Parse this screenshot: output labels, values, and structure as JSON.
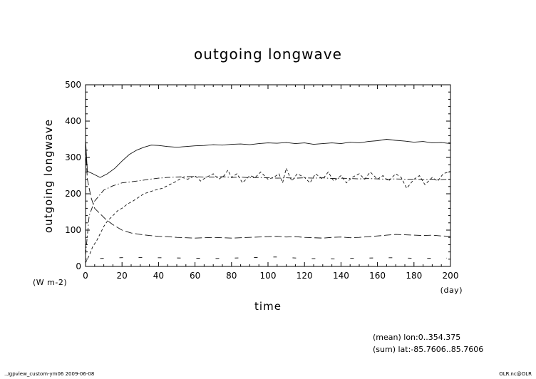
{
  "chart_data": {
    "type": "line",
    "title": "outgoing longwave",
    "ylabel": "outgoing longwave",
    "yunits": "(W m-2)",
    "xlabel": "time",
    "xunits": "(day)",
    "xlim": [
      0,
      200
    ],
    "ylim": [
      0,
      500
    ],
    "xticks": [
      0,
      20,
      40,
      60,
      80,
      100,
      120,
      140,
      160,
      180,
      200
    ],
    "yticks": [
      0,
      100,
      200,
      300,
      400,
      500
    ],
    "grid": false,
    "series": [
      {
        "style": "solid",
        "x": [
          0,
          1,
          4,
          8,
          12,
          16,
          20,
          24,
          28,
          32,
          36,
          40,
          45,
          50,
          55,
          60,
          65,
          70,
          75,
          80,
          85,
          90,
          95,
          100,
          105,
          110,
          115,
          120,
          125,
          130,
          135,
          140,
          145,
          150,
          155,
          160,
          165,
          170,
          175,
          180,
          185,
          190,
          195,
          200
        ],
        "y": [
          350,
          262,
          255,
          245,
          255,
          270,
          290,
          308,
          320,
          328,
          334,
          333,
          330,
          328,
          330,
          332,
          333,
          335,
          334,
          336,
          337,
          335,
          338,
          340,
          339,
          341,
          338,
          340,
          336,
          338,
          340,
          338,
          342,
          340,
          344,
          346,
          350,
          347,
          345,
          342,
          344,
          340,
          341,
          338
        ]
      },
      {
        "style": "dash-dot",
        "x": [
          0,
          2,
          5,
          10,
          15,
          20,
          25,
          30,
          35,
          40,
          45,
          50,
          55,
          60,
          65,
          70,
          75,
          80,
          85,
          90,
          95,
          100,
          105,
          110,
          115,
          120,
          125,
          130,
          135,
          140,
          145,
          150,
          155,
          160,
          165,
          170,
          175,
          180,
          185,
          190,
          195,
          200
        ],
        "y": [
          30,
          140,
          180,
          210,
          222,
          230,
          233,
          236,
          240,
          243,
          245,
          246,
          247,
          247,
          246,
          246,
          247,
          245,
          246,
          244,
          245,
          244,
          243,
          244,
          243,
          244,
          243,
          244,
          242,
          243,
          242,
          241,
          242,
          241,
          240,
          241,
          240,
          240,
          239,
          240,
          239,
          240
        ]
      },
      {
        "style": "dashed",
        "x": [
          0,
          2,
          4,
          6,
          8,
          10,
          12,
          15,
          18,
          20,
          23,
          26,
          29,
          32,
          35,
          38,
          42,
          46,
          50,
          53,
          56,
          60,
          63,
          66,
          70,
          73,
          76,
          78,
          80,
          83,
          86,
          90,
          93,
          96,
          100,
          103,
          106,
          108,
          110,
          113,
          116,
          120,
          123,
          126,
          130,
          133,
          136,
          140,
          143,
          146,
          150,
          153,
          156,
          160,
          163,
          166,
          170,
          173,
          176,
          180,
          183,
          186,
          190,
          193,
          196,
          200
        ],
        "y": [
          10,
          30,
          55,
          70,
          90,
          110,
          125,
          140,
          155,
          160,
          172,
          180,
          190,
          200,
          205,
          210,
          215,
          225,
          235,
          245,
          240,
          250,
          235,
          245,
          255,
          240,
          250,
          265,
          245,
          255,
          230,
          250,
          245,
          260,
          240,
          245,
          255,
          230,
          270,
          235,
          255,
          245,
          230,
          255,
          240,
          260,
          235,
          250,
          230,
          245,
          255,
          240,
          260,
          240,
          250,
          235,
          255,
          245,
          215,
          240,
          250,
          225,
          245,
          235,
          255,
          262
        ]
      },
      {
        "style": "long-dash",
        "x": [
          0,
          1,
          3,
          5,
          8,
          11,
          15,
          20,
          25,
          30,
          35,
          40,
          45,
          50,
          55,
          60,
          65,
          70,
          75,
          80,
          85,
          90,
          95,
          100,
          105,
          110,
          115,
          120,
          125,
          130,
          135,
          140,
          145,
          150,
          155,
          160,
          165,
          170,
          175,
          180,
          185,
          190,
          195,
          200
        ],
        "y": [
          325,
          240,
          190,
          160,
          145,
          130,
          115,
          100,
          92,
          88,
          85,
          83,
          82,
          80,
          79,
          78,
          79,
          80,
          79,
          78,
          79,
          80,
          81,
          82,
          83,
          81,
          82,
          80,
          79,
          78,
          80,
          81,
          79,
          80,
          82,
          84,
          86,
          88,
          87,
          86,
          85,
          86,
          84,
          83
        ]
      },
      {
        "style": "sparse-dash",
        "x": [
          8,
          24,
          40,
          56,
          72,
          88,
          104,
          120,
          136,
          152,
          168,
          184,
          198
        ],
        "y": [
          22,
          25,
          24,
          23,
          22,
          24,
          26,
          22,
          21,
          23,
          24,
          22,
          23
        ]
      }
    ]
  },
  "footer": {
    "mean_line": "(mean) lon:0..354.375",
    "sum_line": "(sum) lat:-85.7606..85.7606",
    "left_caption": "../gpview_custom-ym06  2009-06-08",
    "right_caption": "OLR.nc@OLR"
  }
}
